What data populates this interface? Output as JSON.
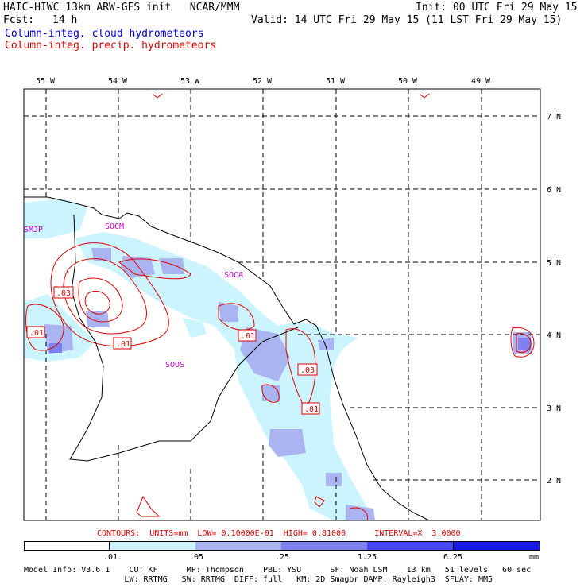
{
  "header": {
    "title_line": "HAIC-HIWC 13km ARW-GFS init   NCAR/MMM",
    "init": "Init: 00 UTC Fri 29 May 15",
    "fcst_label": "Fcst:",
    "fcst_value": "14 h",
    "valid": "Valid: 14 UTC Fri 29 May 15 (11 LST Fri 29 May 15)",
    "field1": "Column-integ. cloud hydrometeors",
    "field2": "Column-integ. precip. hydrometeors"
  },
  "map": {
    "lon_labels": [
      "55 W",
      "54 W",
      "53 W",
      "52 W",
      "51 W",
      "50 W",
      "49 W"
    ],
    "lat_labels": [
      "7 N",
      "6 N",
      "5 N",
      "4 N",
      "3 N",
      "2 N"
    ],
    "stations": [
      "SMJP",
      "SOCM",
      "SOCA",
      "SOOS"
    ],
    "contour_labels": [
      ".03",
      ".01",
      ".01",
      ".01",
      ".03",
      ".01"
    ]
  },
  "contour_info": "CONTOURS:  UNITS=mm  LOW= 0.10000E-01  HIGH= 0.81000      INTERVAL=X  3.0000",
  "colorbar": {
    "labels": [
      ".01",
      ".05",
      ".25",
      "1.25",
      "6.25",
      "mm"
    ],
    "colors": [
      "#ffffff",
      "#ccf4ff",
      "#aab4f0",
      "#7f82ee",
      "#4646f0",
      "#1a1ae6"
    ]
  },
  "model_info": {
    "line1": "Model Info: V3.6.1    CU: KF      MP: Thompson    PBL: YSU      SF: Noah LSM    13 km   51 levels   60 sec",
    "line2": "                     LW: RRTMG   SW: RRTMG  DIFF: full   KM: 2D Smagor DAMP: Rayleigh3  SFLAY: MM5"
  }
}
